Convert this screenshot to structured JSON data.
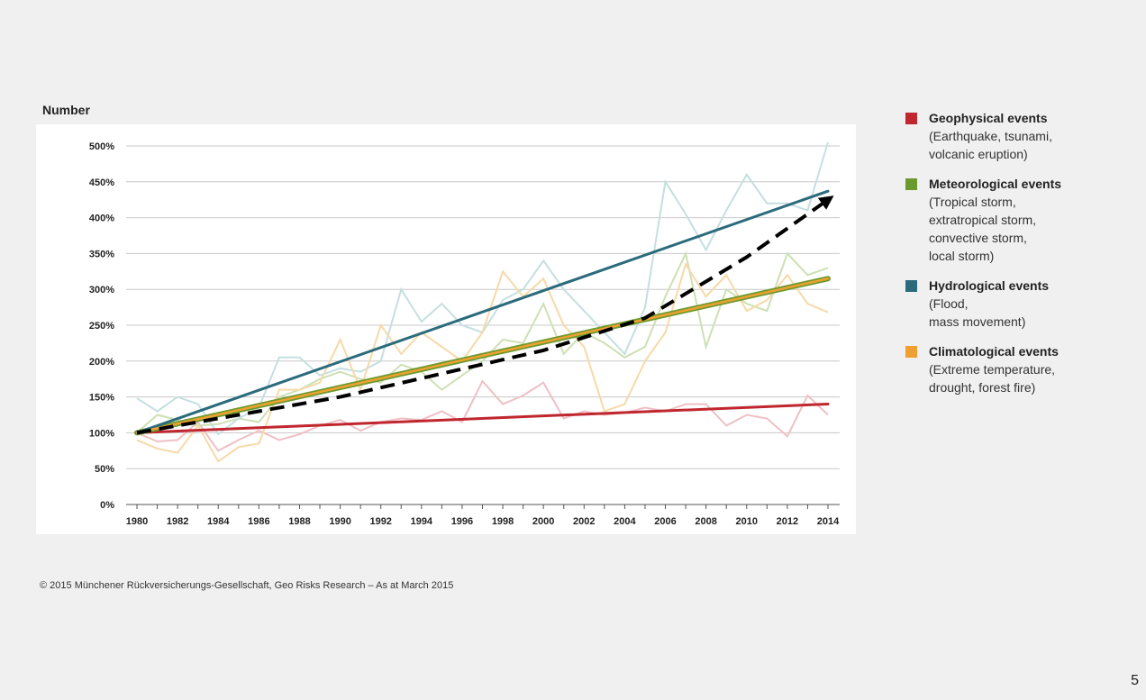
{
  "y_axis_title": "Number",
  "legend": [
    {
      "title": "Geophysical events",
      "desc": "(Earthquake, tsunami,\nvolcanic eruption)",
      "color": "#c0262e"
    },
    {
      "title": "Meteorological events",
      "desc": "(Tropical storm,\nextratropical storm,\nconvective storm,\nlocal storm)",
      "color": "#6a9a2e"
    },
    {
      "title": "Hydrological events",
      "desc": "(Flood,\nmass movement)",
      "color": "#2b6b7b"
    },
    {
      "title": "Climatological events",
      "desc": "(Extreme temperature,\ndrought, forest fire)",
      "color": "#f0a030"
    }
  ],
  "copyright": "© 2015 Münchener Rückversicherungs-Gesellschaft, Geo Risks Research – As at March 2015",
  "page_number": "5",
  "chart_data": {
    "type": "line",
    "title": "",
    "ylabel": "Number",
    "xlabel": "",
    "x_ticks": [
      "1980",
      "1982",
      "1984",
      "1986",
      "1988",
      "1990",
      "1992",
      "1994",
      "1996",
      "1998",
      "2000",
      "2002",
      "2004",
      "2006",
      "2008",
      "2010",
      "2012",
      "2014"
    ],
    "y_ticks": [
      "0%",
      "50%",
      "100%",
      "150%",
      "200%",
      "250%",
      "300%",
      "350%",
      "400%",
      "450%",
      "500%"
    ],
    "xlim": [
      1980,
      2014
    ],
    "ylim": [
      0,
      500
    ],
    "grid": true,
    "legend_position": "right",
    "x": [
      1980,
      1981,
      1982,
      1983,
      1984,
      1985,
      1986,
      1987,
      1988,
      1989,
      1990,
      1991,
      1992,
      1993,
      1994,
      1995,
      1996,
      1997,
      1998,
      1999,
      2000,
      2001,
      2002,
      2003,
      2004,
      2005,
      2006,
      2007,
      2008,
      2009,
      2010,
      2011,
      2012,
      2013,
      2014
    ],
    "series": [
      {
        "name": "Geophysical events",
        "color": "#c0262e",
        "light_color": "#eec0c4",
        "values": [
          100,
          88,
          90,
          115,
          75,
          90,
          103,
          90,
          98,
          110,
          118,
          103,
          115,
          120,
          118,
          130,
          115,
          172,
          140,
          152,
          170,
          120,
          130,
          125,
          128,
          135,
          130,
          140,
          140,
          110,
          125,
          120,
          95,
          152,
          125
        ],
        "trend": [
          100,
          140
        ]
      },
      {
        "name": "Meteorological events",
        "color": "#6a9a2e",
        "light_color": "#cde0b4",
        "values": [
          100,
          125,
          118,
          110,
          112,
          120,
          115,
          150,
          160,
          175,
          185,
          175,
          170,
          195,
          185,
          160,
          180,
          200,
          230,
          225,
          280,
          210,
          240,
          225,
          205,
          220,
          290,
          350,
          220,
          300,
          280,
          270,
          350,
          320,
          330
        ],
        "trend": [
          100,
          315
        ]
      },
      {
        "name": "Hydrological events",
        "color": "#2b6b7b",
        "light_color": "#c5dfe0",
        "values": [
          148,
          130,
          150,
          140,
          98,
          120,
          135,
          205,
          205,
          180,
          190,
          185,
          200,
          300,
          255,
          280,
          250,
          240,
          285,
          300,
          340,
          300,
          270,
          240,
          210,
          275,
          450,
          405,
          355,
          410,
          460,
          420,
          420,
          410,
          505
        ],
        "trend": [
          100,
          437
        ]
      },
      {
        "name": "Climatological events",
        "color": "#f0a030",
        "light_color": "#f7d9a8",
        "values": [
          90,
          78,
          72,
          110,
          60,
          80,
          85,
          160,
          160,
          170,
          230,
          160,
          250,
          210,
          240,
          220,
          200,
          240,
          325,
          290,
          315,
          250,
          220,
          130,
          140,
          200,
          240,
          335,
          290,
          320,
          270,
          285,
          320,
          280,
          268
        ],
        "trend": [
          100,
          315
        ]
      }
    ],
    "dashed_trend": {
      "color": "#000000",
      "x": [
        1980,
        1990,
        2000,
        2005,
        2010,
        2014
      ],
      "y": [
        100,
        150,
        215,
        260,
        345,
        425
      ]
    }
  }
}
